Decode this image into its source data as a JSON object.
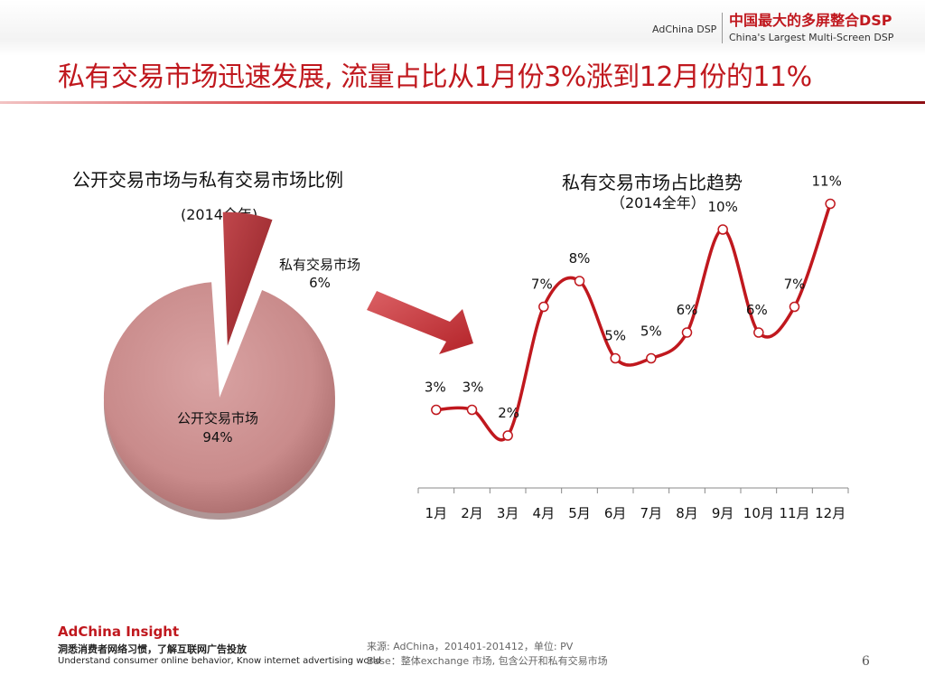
{
  "header": {
    "brand_small": "AdChina DSP",
    "brand_cn": "中国最大的多屏整合DSP",
    "brand_en": "China's Largest Multi-Screen DSP"
  },
  "page_title": "私有交易市场迅速发展, 流量占比从1月份3%涨到12月份的11%",
  "colors": {
    "accent": "#c0181e",
    "pie_public": "#c98b8b",
    "pie_private": "#a83238",
    "line": "#c0181e"
  },
  "chart_data": [
    {
      "type": "pie",
      "title": "公开交易市场与私有交易市场比例",
      "subtitle": "(2014全年)",
      "slices": [
        {
          "label": "公开交易市场",
          "value": 94,
          "value_label": "94%"
        },
        {
          "label": "私有交易市场",
          "value": 6,
          "value_label": "6%"
        }
      ]
    },
    {
      "type": "line",
      "title": "私有交易市场占比趋势",
      "subtitle": "（2014全年）",
      "categories": [
        "1月",
        "2月",
        "3月",
        "4月",
        "5月",
        "6月",
        "7月",
        "8月",
        "9月",
        "10月",
        "11月",
        "12月"
      ],
      "values": [
        3,
        3,
        2,
        7,
        8,
        5,
        5,
        6,
        10,
        6,
        7,
        11
      ],
      "value_labels": [
        "3%",
        "3%",
        "2%",
        "7%",
        "8%",
        "5%",
        "5%",
        "6%",
        "10%",
        "6%",
        "7%",
        "11%"
      ],
      "ylim": [
        0,
        12
      ],
      "grid": false,
      "smooth": true
    }
  ],
  "footer": {
    "brand": "AdChina Insight",
    "tagline_cn": "洞悉消费者网络习惯，了解互联网广告投放",
    "tagline_en": "Understand consumer online behavior, Know internet advertising world",
    "source_line1": "来源: AdChina，201401-201412，单位: PV",
    "source_line2": "Base：整体exchange 市场, 包含公开和私有交易市场",
    "page_number": "6"
  }
}
